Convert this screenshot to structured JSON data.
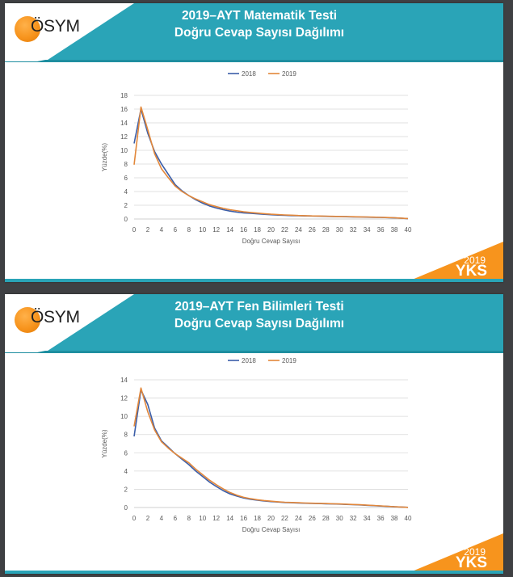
{
  "slides": [
    {
      "logo_text": "ÖSYM",
      "title_line1": "2019–AYT Matematik Testi",
      "title_line2": "Doğru Cevap Sayısı Dağılımı",
      "badge_year": "2019",
      "badge_text": "YKS"
    },
    {
      "logo_text": "ÖSYM",
      "title_line1": "2019–AYT Fen Bilimleri Testi",
      "title_line2": "Doğru Cevap Sayısı Dağılımı",
      "badge_year": "2019",
      "badge_text": "YKS"
    }
  ],
  "colors": {
    "teal": "#2aa4b7",
    "orange": "#f7941d",
    "series_2018": "#3b5ea8",
    "series_2019": "#e2873a",
    "grid": "#d9d9d9"
  },
  "chart_data": [
    {
      "type": "line",
      "title": "2019–AYT Matematik Testi Doğru Cevap Sayısı Dağılımı",
      "xlabel": "Doğru Cevap Sayısı",
      "ylabel": "Yüzde(%)",
      "xlim": [
        0,
        40
      ],
      "ylim": [
        0,
        18
      ],
      "x_ticks": [
        0,
        2,
        4,
        6,
        8,
        10,
        12,
        14,
        16,
        18,
        20,
        22,
        24,
        26,
        28,
        30,
        32,
        34,
        36,
        38,
        40
      ],
      "y_ticks": [
        0,
        2,
        4,
        6,
        8,
        10,
        12,
        14,
        16,
        18
      ],
      "grid": true,
      "legend": "top-center",
      "x": [
        0,
        1,
        2,
        3,
        4,
        5,
        6,
        7,
        8,
        9,
        10,
        11,
        12,
        13,
        14,
        15,
        16,
        17,
        18,
        19,
        20,
        21,
        22,
        23,
        24,
        25,
        26,
        27,
        28,
        29,
        30,
        31,
        32,
        33,
        34,
        35,
        36,
        37,
        38,
        39,
        40
      ],
      "series": [
        {
          "name": "2018",
          "values": [
            11.0,
            16.0,
            12.5,
            9.8,
            8.0,
            6.5,
            5.0,
            4.1,
            3.4,
            2.8,
            2.3,
            1.9,
            1.6,
            1.35,
            1.15,
            1.0,
            0.9,
            0.82,
            0.75,
            0.68,
            0.62,
            0.57,
            0.53,
            0.5,
            0.47,
            0.45,
            0.43,
            0.41,
            0.39,
            0.37,
            0.35,
            0.33,
            0.31,
            0.29,
            0.27,
            0.25,
            0.23,
            0.2,
            0.17,
            0.12,
            0.05
          ]
        },
        {
          "name": "2019",
          "values": [
            7.9,
            16.3,
            13.0,
            9.5,
            7.3,
            6.0,
            4.8,
            4.0,
            3.4,
            2.9,
            2.5,
            2.1,
            1.8,
            1.55,
            1.35,
            1.2,
            1.05,
            0.95,
            0.86,
            0.78,
            0.7,
            0.64,
            0.59,
            0.55,
            0.51,
            0.48,
            0.45,
            0.43,
            0.41,
            0.39,
            0.37,
            0.35,
            0.33,
            0.31,
            0.29,
            0.27,
            0.24,
            0.21,
            0.18,
            0.13,
            0.06
          ]
        }
      ]
    },
    {
      "type": "line",
      "title": "2019–AYT Fen Bilimleri Testi Doğru Cevap Sayısı Dağılımı",
      "xlabel": "Doğru Cevap Sayısı",
      "ylabel": "Yüzde(%)",
      "xlim": [
        0,
        40
      ],
      "ylim": [
        0,
        14
      ],
      "x_ticks": [
        0,
        2,
        4,
        6,
        8,
        10,
        12,
        14,
        16,
        18,
        20,
        22,
        24,
        26,
        28,
        30,
        32,
        34,
        36,
        38,
        40
      ],
      "y_ticks": [
        0,
        2,
        4,
        6,
        8,
        10,
        12,
        14
      ],
      "grid": true,
      "legend": "top-center",
      "x": [
        0,
        1,
        2,
        3,
        4,
        5,
        6,
        7,
        8,
        9,
        10,
        11,
        12,
        13,
        14,
        15,
        16,
        17,
        18,
        19,
        20,
        21,
        22,
        23,
        24,
        25,
        26,
        27,
        28,
        29,
        30,
        31,
        32,
        33,
        34,
        35,
        36,
        37,
        38,
        39,
        40
      ],
      "series": [
        {
          "name": "2018",
          "values": [
            7.8,
            12.9,
            11.3,
            8.7,
            7.3,
            6.6,
            5.9,
            5.3,
            4.7,
            4.0,
            3.4,
            2.8,
            2.3,
            1.85,
            1.5,
            1.25,
            1.05,
            0.9,
            0.8,
            0.72,
            0.65,
            0.6,
            0.55,
            0.52,
            0.49,
            0.47,
            0.45,
            0.43,
            0.41,
            0.39,
            0.37,
            0.34,
            0.31,
            0.28,
            0.24,
            0.2,
            0.16,
            0.12,
            0.08,
            0.05,
            0.02
          ]
        },
        {
          "name": "2019",
          "values": [
            8.9,
            13.1,
            10.5,
            8.5,
            7.2,
            6.5,
            5.9,
            5.4,
            4.9,
            4.2,
            3.6,
            3.0,
            2.5,
            2.05,
            1.65,
            1.35,
            1.12,
            0.97,
            0.85,
            0.76,
            0.69,
            0.63,
            0.58,
            0.55,
            0.52,
            0.49,
            0.47,
            0.45,
            0.43,
            0.41,
            0.39,
            0.36,
            0.33,
            0.3,
            0.26,
            0.22,
            0.18,
            0.13,
            0.09,
            0.05,
            0.02
          ]
        }
      ]
    }
  ]
}
